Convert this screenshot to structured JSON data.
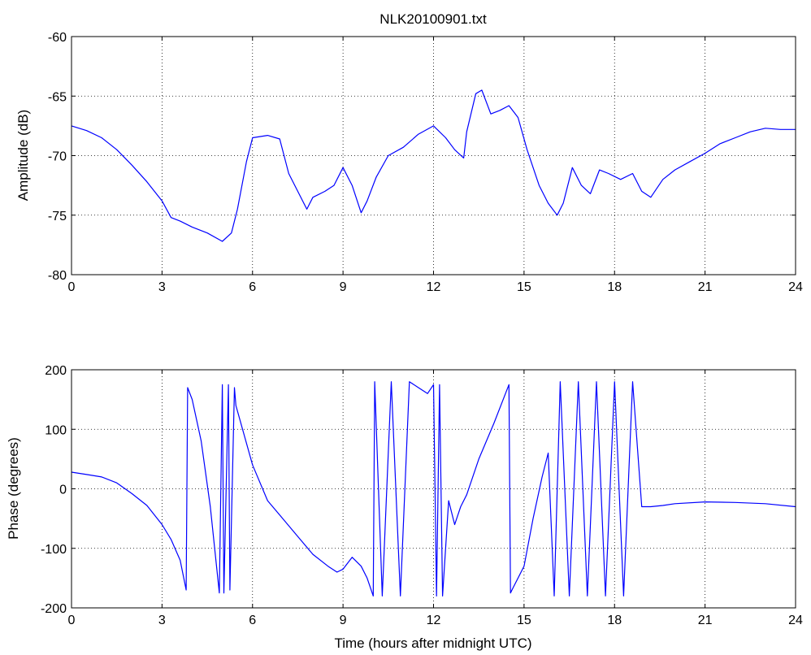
{
  "figure": {
    "title": "NLK20100901.txt",
    "xlabel": "Time (hours after midnight UTC)"
  },
  "chart_data": [
    {
      "type": "line",
      "title": "NLK20100901.txt",
      "xlabel": "",
      "ylabel": "Amplitude (dB)",
      "xlim": [
        0,
        24
      ],
      "ylim": [
        -80,
        -60
      ],
      "xticks": [
        0,
        3,
        6,
        9,
        12,
        15,
        18,
        21,
        24
      ],
      "yticks": [
        -80,
        -75,
        -70,
        -65,
        -60
      ],
      "grid": true,
      "line_color": "#0000ff",
      "series": [
        {
          "x": [
            0,
            0.5,
            1.0,
            1.5,
            2.0,
            2.5,
            3.0,
            3.3,
            3.6,
            4.0,
            4.5,
            5.0,
            5.3,
            5.5,
            5.8,
            6.0,
            6.5,
            6.9,
            7.2,
            7.5,
            7.8,
            8.0,
            8.4,
            8.7,
            9.0,
            9.3,
            9.6,
            9.8,
            10.1,
            10.5,
            11.0,
            11.5,
            12.0,
            12.4,
            12.7,
            13.0,
            13.1,
            13.4,
            13.6,
            13.9,
            14.2,
            14.5,
            14.8,
            15.1,
            15.5,
            15.8,
            16.1,
            16.3,
            16.6,
            16.9,
            17.2,
            17.5,
            17.8,
            18.2,
            18.6,
            18.9,
            19.2,
            19.6,
            20.0,
            20.5,
            21.0,
            21.5,
            22.0,
            22.5,
            23.0,
            23.5,
            24.0
          ],
          "values": [
            -67.5,
            -67.9,
            -68.5,
            -69.5,
            -70.8,
            -72.2,
            -73.8,
            -75.2,
            -75.5,
            -76.0,
            -76.5,
            -77.2,
            -76.5,
            -74.5,
            -70.5,
            -68.5,
            -68.3,
            -68.6,
            -71.5,
            -73.0,
            -74.5,
            -73.5,
            -73.0,
            -72.5,
            -71.0,
            -72.5,
            -74.8,
            -73.8,
            -71.8,
            -70.0,
            -69.3,
            -68.2,
            -67.5,
            -68.5,
            -69.5,
            -70.2,
            -68.0,
            -64.8,
            -64.5,
            -66.5,
            -66.2,
            -65.8,
            -66.8,
            -69.5,
            -72.5,
            -74.0,
            -75.0,
            -74.0,
            -71.0,
            -72.5,
            -73.2,
            -71.2,
            -71.5,
            -72.0,
            -71.5,
            -73.0,
            -73.5,
            -72.0,
            -71.2,
            -70.5,
            -69.8,
            -69.0,
            -68.5,
            -68.0,
            -67.7,
            -67.8,
            -67.8
          ]
        }
      ]
    },
    {
      "type": "line",
      "title": "",
      "xlabel": "Time (hours after midnight UTC)",
      "ylabel": "Phase (degrees)",
      "xlim": [
        0,
        24
      ],
      "ylim": [
        -200,
        200
      ],
      "xticks": [
        0,
        3,
        6,
        9,
        12,
        15,
        18,
        21,
        24
      ],
      "yticks": [
        -200,
        -100,
        0,
        100,
        200
      ],
      "grid": true,
      "line_color": "#0000ff",
      "series": [
        {
          "x": [
            0,
            0.5,
            1.0,
            1.5,
            2.0,
            2.5,
            3.0,
            3.3,
            3.6,
            3.8,
            3.85,
            4.0,
            4.3,
            4.6,
            4.9,
            5.0,
            5.05,
            5.2,
            5.25,
            5.4,
            5.45,
            6.0,
            6.5,
            7.0,
            7.5,
            8.0,
            8.5,
            8.8,
            9.0,
            9.3,
            9.6,
            9.8,
            10.0,
            10.05,
            10.3,
            10.6,
            10.9,
            11.2,
            11.5,
            11.8,
            12.0,
            12.1,
            12.2,
            12.3,
            12.5,
            12.7,
            12.9,
            13.1,
            13.5,
            14.0,
            14.5,
            14.55,
            14.6,
            15.0,
            15.3,
            15.6,
            15.8,
            16.0,
            16.2,
            16.5,
            16.8,
            17.1,
            17.4,
            17.7,
            18.0,
            18.3,
            18.6,
            18.9,
            19.2,
            19.6,
            20.0,
            21.0,
            22.0,
            23.0,
            24.0
          ],
          "values": [
            28,
            24,
            20,
            10,
            -8,
            -28,
            -60,
            -85,
            -120,
            -170,
            170,
            150,
            80,
            -30,
            -175,
            175,
            -175,
            175,
            -170,
            170,
            140,
            40,
            -20,
            -50,
            -80,
            -110,
            -130,
            -140,
            -135,
            -115,
            -130,
            -150,
            -180,
            180,
            -180,
            180,
            -180,
            180,
            170,
            160,
            175,
            -180,
            175,
            -180,
            -20,
            -60,
            -30,
            -10,
            50,
            110,
            175,
            -175,
            -170,
            -130,
            -50,
            20,
            60,
            -180,
            180,
            -180,
            180,
            -180,
            180,
            -180,
            180,
            -180,
            180,
            -30,
            -30,
            -28,
            -25,
            -22,
            -23,
            -25,
            -30
          ]
        }
      ]
    }
  ]
}
